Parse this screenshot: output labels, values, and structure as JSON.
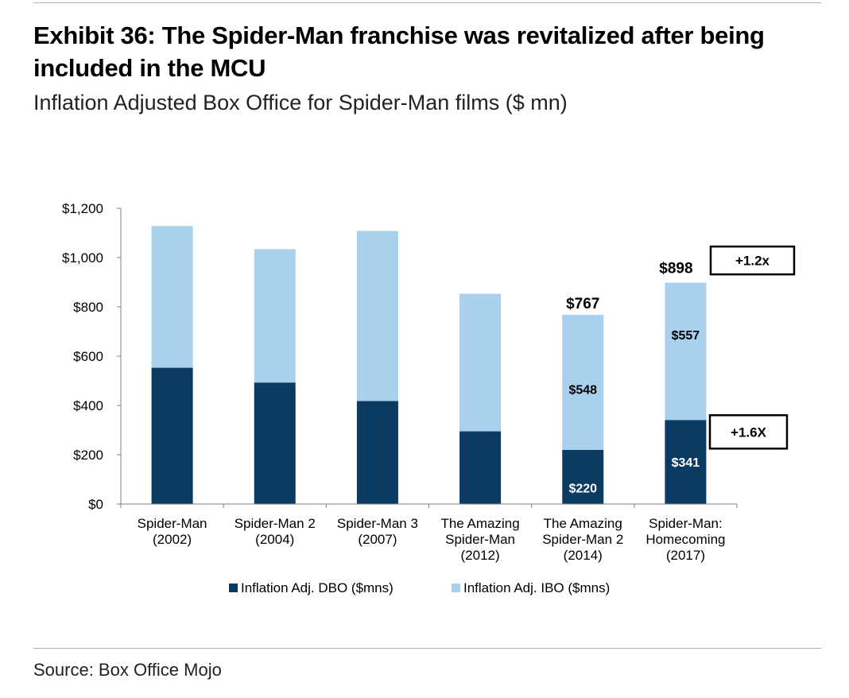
{
  "title": "Exhibit 36: The Spider-Man franchise was revitalized after being included in the MCU",
  "subtitle": "Inflation Adjusted Box Office for Spider-Man films ($ mn)",
  "source": "Source: Box Office Mojo",
  "colors": {
    "dbo": "#0b3a63",
    "ibo": "#a9d1ee",
    "axis": "#808080",
    "text": "#000000",
    "onDark": "#ffffff"
  },
  "chart_data": {
    "type": "bar",
    "stacked": true,
    "categories": [
      [
        "Spider-Man",
        "(2002)"
      ],
      [
        "Spider-Man 2",
        "(2004)"
      ],
      [
        "Spider-Man 3",
        "(2007)"
      ],
      [
        "The Amazing",
        "Spider-Man",
        "(2012)"
      ],
      [
        "The Amazing",
        "Spider-Man 2",
        "(2014)"
      ],
      [
        "Spider-Man:",
        "Homecoming",
        "(2017)"
      ]
    ],
    "series": [
      {
        "name": "Inflation Adj. DBO ($mns)",
        "values": [
          553,
          493,
          418,
          295,
          220,
          341
        ]
      },
      {
        "name": "Inflation Adj. IBO ($mns)",
        "values": [
          575,
          541,
          690,
          558,
          548,
          557
        ]
      }
    ],
    "ylim": [
      0,
      1200
    ],
    "yticks": [
      0,
      200,
      400,
      600,
      800,
      1000,
      1200
    ],
    "ytick_labels": [
      "$0",
      "$200",
      "$400",
      "$600",
      "$800",
      "$1,000",
      "$1,200"
    ],
    "legend_position": "bottom",
    "data_labels": [
      {
        "bar": 4,
        "series": 0,
        "text": "$220"
      },
      {
        "bar": 4,
        "series": 1,
        "text": "$548"
      },
      {
        "bar": 4,
        "series": "total",
        "text": "$767"
      },
      {
        "bar": 5,
        "series": 0,
        "text": "$341"
      },
      {
        "bar": 5,
        "series": 1,
        "text": "$557"
      },
      {
        "bar": 5,
        "series": "total",
        "text": "$898"
      }
    ],
    "annotations": [
      {
        "text": "+1.2x",
        "anchor": "total",
        "bar": 5
      },
      {
        "text": "+1.6X",
        "anchor": "dbo",
        "bar": 5
      }
    ]
  }
}
